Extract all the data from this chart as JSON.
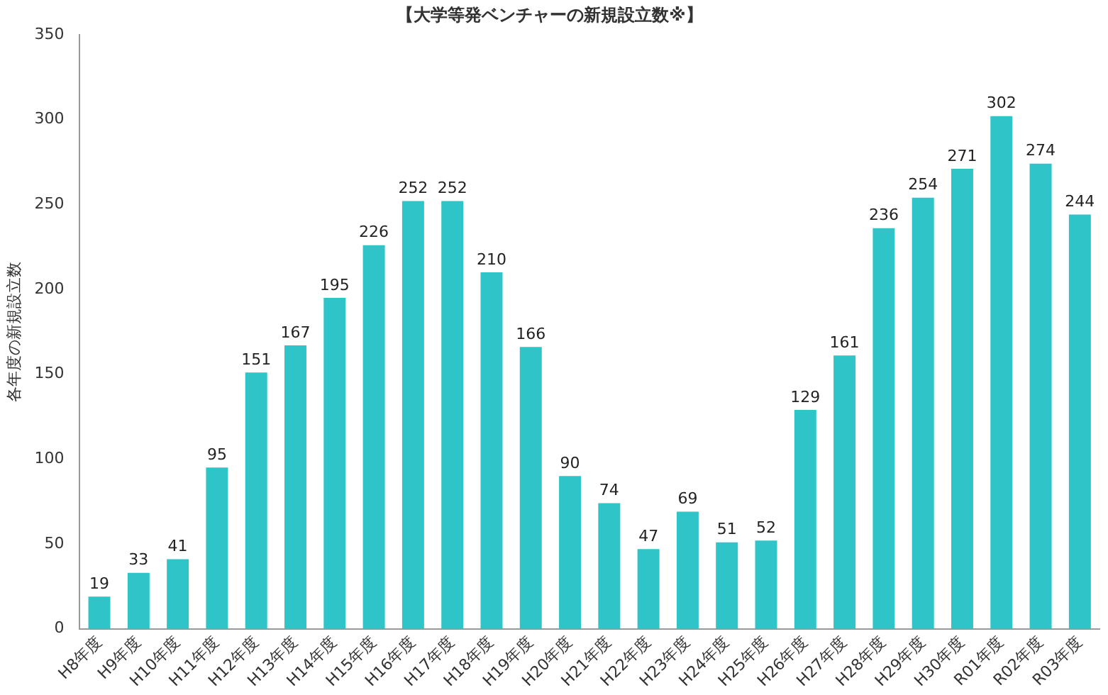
{
  "chart_data": {
    "type": "bar",
    "title": "【大学等発ベンチャーの新規設立数※】",
    "ylabel": "各年度の新規設立数",
    "categories": [
      "H8年度",
      "H9年度",
      "H10年度",
      "H11年度",
      "H12年度",
      "H13年度",
      "H14年度",
      "H15年度",
      "H16年度",
      "H17年度",
      "H18年度",
      "H19年度",
      "H20年度",
      "H21年度",
      "H22年度",
      "H23年度",
      "H24年度",
      "H25年度",
      "H26年度",
      "H27年度",
      "H28年度",
      "H29年度",
      "H30年度",
      "R01年度",
      "R02年度",
      "R03年度"
    ],
    "values": [
      19,
      33,
      41,
      95,
      151,
      167,
      195,
      226,
      252,
      252,
      210,
      166,
      90,
      74,
      47,
      69,
      51,
      52,
      129,
      161,
      236,
      254,
      271,
      302,
      274,
      244
    ],
    "color": "#2ec4c8",
    "ylim": [
      0,
      350
    ],
    "yticks": [
      0,
      50,
      100,
      150,
      200,
      250,
      300,
      350
    ],
    "grid": false,
    "data_labels": true
  }
}
